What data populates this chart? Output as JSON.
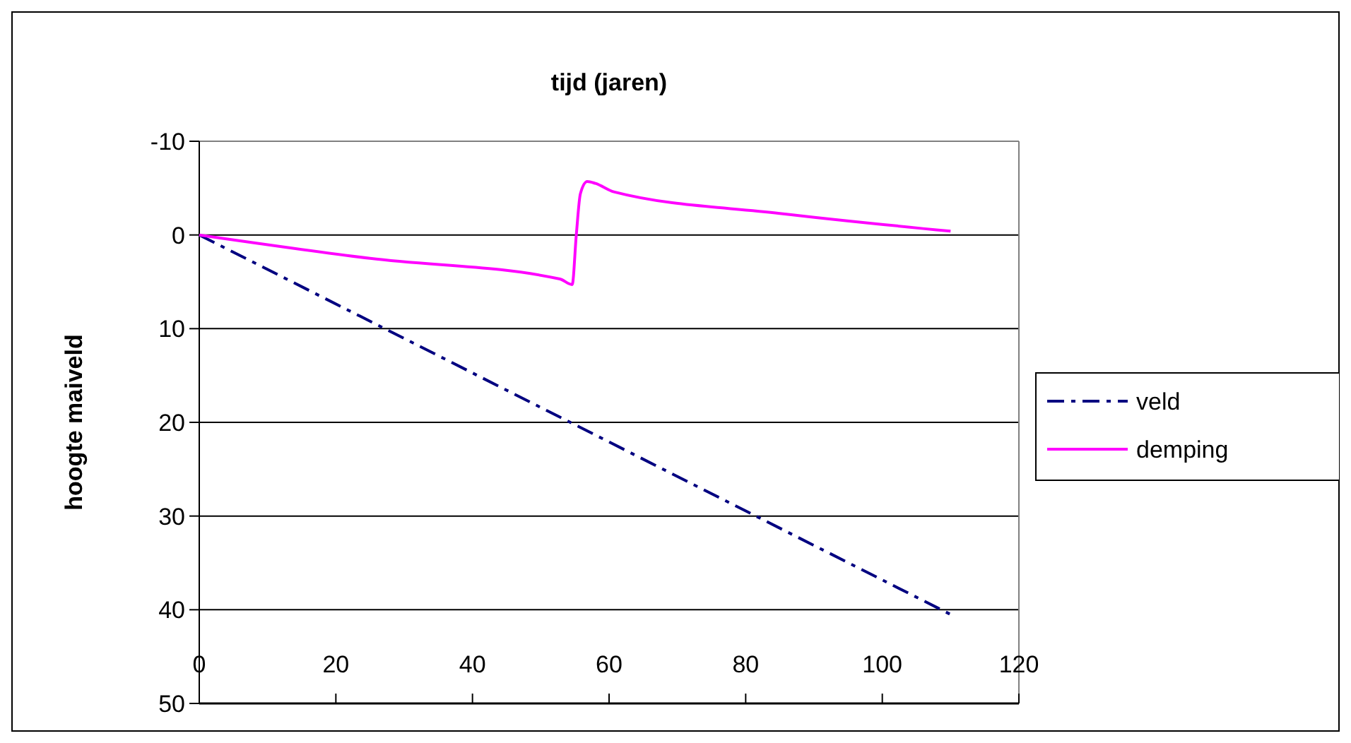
{
  "chart_data": {
    "type": "line",
    "title": "tijd (jaren)",
    "ylabel": "hoogte maiveld",
    "xlim": [
      0,
      120
    ],
    "xticks": [
      0,
      20,
      40,
      60,
      80,
      100,
      120
    ],
    "ylim": [
      50,
      -10
    ],
    "yticks": [
      -10,
      0,
      10,
      20,
      30,
      40,
      50
    ],
    "grid": "y",
    "legend": "right",
    "series": [
      {
        "name": "veld",
        "color": "#000080",
        "line_style": "dashed",
        "x": [
          0,
          110
        ],
        "values": [
          0,
          40.5
        ]
      },
      {
        "name": "demping",
        "color": "#ff00ff",
        "line_style": "solid",
        "x": [
          0,
          25,
          52.8,
          54.6,
          55.2,
          55.8,
          56.8,
          58,
          60.7,
          85,
          110
        ],
        "values": [
          0,
          2.5,
          4.7,
          5.3,
          0,
          -4.4,
          -5.7,
          -5.5,
          -4.6,
          -2.3,
          -0.4
        ]
      }
    ]
  }
}
